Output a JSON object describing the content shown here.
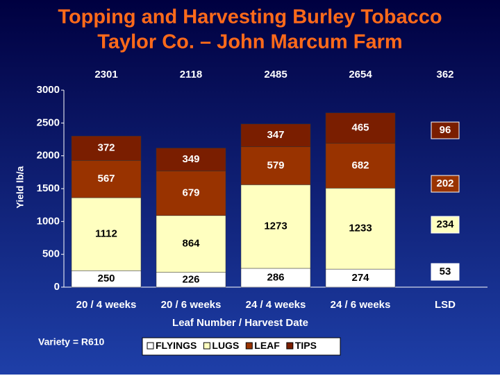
{
  "chart_data": {
    "type": "stacked-bar",
    "title": [
      "Topping and Harvesting Burley Tobacco",
      "Taylor Co. – John Marcum Farm"
    ],
    "y_label": "Yield lb/a",
    "x_label": "Leaf Number / Harvest Date",
    "note": "Variety = R610",
    "categories": [
      "20 / 4 weeks",
      "20 / 6 weeks",
      "24 / 4 weeks",
      "24 / 6 weeks"
    ],
    "totals": [
      2301,
      2118,
      2485,
      2654
    ],
    "series": [
      {
        "name": "FLYINGS",
        "color": "#ffffff",
        "values": [
          250,
          226,
          286,
          274
        ]
      },
      {
        "name": "LUGS",
        "color": "#ffffc0",
        "values": [
          1112,
          864,
          1273,
          1233
        ]
      },
      {
        "name": "LEAF",
        "color": "#993300",
        "values": [
          567,
          679,
          579,
          682
        ]
      },
      {
        "name": "TIPS",
        "color": "#7a1e00",
        "values": [
          372,
          349,
          347,
          465
        ]
      }
    ],
    "lsd": {
      "label": "LSD",
      "total": 362,
      "values": [
        53,
        234,
        202,
        96
      ]
    },
    "ylim": [
      0,
      3000
    ],
    "yticks": [
      0,
      500,
      1000,
      1500,
      2000,
      2500,
      3000
    ]
  }
}
